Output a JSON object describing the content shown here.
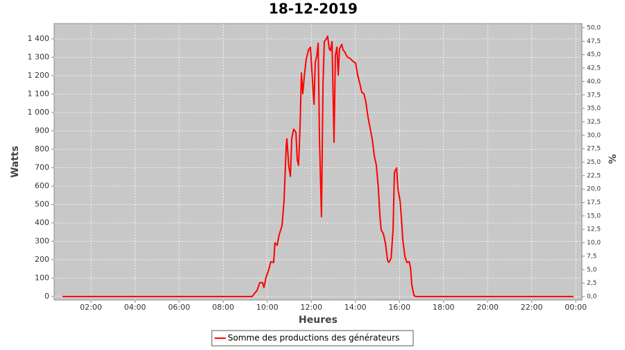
{
  "chart_data": {
    "type": "line",
    "title": "18-12-2019",
    "x_label": "Heures",
    "y_label": "Watts",
    "y2_label": "%",
    "xlim": [
      0.33,
      24.28
    ],
    "xticks": [
      {
        "value": 2,
        "label": "02:00"
      },
      {
        "value": 4,
        "label": "04:00"
      },
      {
        "value": 6,
        "label": "06:00"
      },
      {
        "value": 8,
        "label": "08:00"
      },
      {
        "value": 10,
        "label": "10:00"
      },
      {
        "value": 12,
        "label": "12:00"
      },
      {
        "value": 14,
        "label": "14:00"
      },
      {
        "value": 16,
        "label": "16:00"
      },
      {
        "value": 18,
        "label": "18:00"
      },
      {
        "value": 20,
        "label": "20:00"
      },
      {
        "value": 22,
        "label": "22:00"
      },
      {
        "value": 24,
        "label": "00:00"
      }
    ],
    "ylim": [
      -19,
      1483
    ],
    "yticks": [
      0,
      100,
      200,
      300,
      400,
      500,
      600,
      700,
      800,
      900,
      {
        "value": 1000,
        "label": "1 000"
      },
      {
        "value": 1100,
        "label": "1 100"
      },
      {
        "value": 1200,
        "label": "1 200"
      },
      {
        "value": 1300,
        "label": "1 300"
      },
      {
        "value": 1400,
        "label": "1 400"
      }
    ],
    "y2lim": [
      -0.65,
      50.78
    ],
    "y2ticks": [
      {
        "value": 0,
        "label": "0,0"
      },
      {
        "value": 2.5,
        "label": "2,5"
      },
      {
        "value": 5,
        "label": "5,0"
      },
      {
        "value": 7.5,
        "label": "7,5"
      },
      {
        "value": 10,
        "label": "10,0"
      },
      {
        "value": 12.5,
        "label": "12,5"
      },
      {
        "value": 15,
        "label": "15,0"
      },
      {
        "value": 17.5,
        "label": "17,5"
      },
      {
        "value": 20,
        "label": "20,0"
      },
      {
        "value": 22.5,
        "label": "22,5"
      },
      {
        "value": 25,
        "label": "25,0"
      },
      {
        "value": 27.5,
        "label": "27,5"
      },
      {
        "value": 30,
        "label": "30,0"
      },
      {
        "value": 32.5,
        "label": "32,5"
      },
      {
        "value": 35,
        "label": "35,0"
      },
      {
        "value": 37.5,
        "label": "37,5"
      },
      {
        "value": 40,
        "label": "40,0"
      },
      {
        "value": 42.5,
        "label": "42,5"
      },
      {
        "value": 45,
        "label": "45,0"
      },
      {
        "value": 47.5,
        "label": "47,5"
      },
      {
        "value": 50,
        "label": "50,0"
      }
    ],
    "grid": true,
    "legend": "bottom",
    "x": [
      0.71,
      9.31,
      9.54,
      9.66,
      9.79,
      9.85,
      9.94,
      10.07,
      10.16,
      10.29,
      10.35,
      10.45,
      10.54,
      10.67,
      10.76,
      10.86,
      10.89,
      10.98,
      11.05,
      11.11,
      11.2,
      11.3,
      11.36,
      11.42,
      11.49,
      11.55,
      11.61,
      11.68,
      11.77,
      11.87,
      11.96,
      12.02,
      12.12,
      12.18,
      12.25,
      12.31,
      12.37,
      12.46,
      12.53,
      12.59,
      12.68,
      12.74,
      12.81,
      12.87,
      12.94,
      13.03,
      13.09,
      13.16,
      13.22,
      13.28,
      13.38,
      13.44,
      13.5,
      13.63,
      13.76,
      13.88,
      14.01,
      14.1,
      14.2,
      14.29,
      14.39,
      14.48,
      14.57,
      14.67,
      14.76,
      14.86,
      14.95,
      15.04,
      15.11,
      15.17,
      15.27,
      15.36,
      15.46,
      15.52,
      15.62,
      15.71,
      15.77,
      15.87,
      15.93,
      16.03,
      16.09,
      16.15,
      16.25,
      16.34,
      16.44,
      16.5,
      16.56,
      16.66,
      16.75,
      23.9
    ],
    "series": [
      {
        "name": "Somme des productions des  générateurs",
        "color": "#ff0000",
        "values": [
          0,
          0,
          34,
          75,
          75,
          49,
          102,
          147,
          189,
          185,
          291,
          279,
          336,
          385,
          517,
          819,
          857,
          706,
          653,
          857,
          909,
          894,
          743,
          713,
          932,
          1215,
          1102,
          1196,
          1291,
          1340,
          1355,
          1234,
          1045,
          1272,
          1309,
          1377,
          857,
          434,
          1158,
          1385,
          1400,
          1415,
          1347,
          1336,
          1385,
          838,
          1309,
          1355,
          1204,
          1347,
          1370,
          1340,
          1332,
          1302,
          1294,
          1279,
          1268,
          1204,
          1158,
          1109,
          1102,
          1053,
          977,
          913,
          857,
          762,
          713,
          592,
          442,
          362,
          340,
          291,
          196,
          185,
          208,
          366,
          675,
          698,
          585,
          517,
          423,
          309,
          215,
          185,
          189,
          158,
          64,
          4,
          0,
          0
        ]
      }
    ]
  }
}
